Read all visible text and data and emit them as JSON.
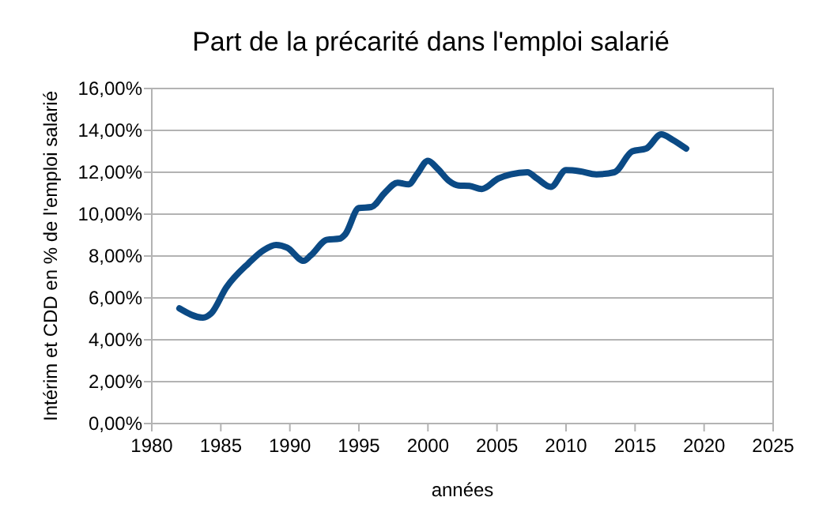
{
  "chart_data": {
    "type": "line",
    "title": "Part de la précarité dans l'emploi salarié",
    "xlabel": "années",
    "ylabel": "Intérim et CDD en % de l'emploi salarié",
    "x": [
      1982,
      1983.7,
      1984.3,
      1985.4,
      1987,
      1988.1,
      1989,
      1989.8,
      1991,
      1991.5,
      1992.7,
      1993.6,
      1994,
      1995,
      1995.9,
      1996.9,
      1997.8,
      1998.6,
      1999.2,
      2000,
      2000.7,
      2001.5,
      2002.2,
      2003,
      2003.9,
      2005.1,
      2006,
      2007.2,
      2007.9,
      2008.9,
      2010,
      2011,
      2012.2,
      2013.5,
      2014.8,
      2015.8,
      2016.9,
      2017.7,
      2018.7
    ],
    "series": [
      {
        "color": "#0b4a85",
        "values": [
          5.5,
          5.06,
          5.26,
          6.5,
          7.65,
          8.28,
          8.53,
          8.4,
          7.77,
          8.02,
          8.78,
          8.83,
          9.03,
          10.29,
          10.34,
          11.04,
          11.5,
          11.42,
          11.9,
          12.55,
          12.17,
          11.6,
          11.37,
          11.35,
          11.2,
          11.7,
          11.9,
          12.0,
          11.7,
          11.3,
          12.1,
          12.05,
          11.9,
          12.0,
          13.0,
          13.13,
          13.81,
          13.56,
          13.13
        ]
      }
    ],
    "xlim": [
      1980,
      2025
    ],
    "xticks": [
      1980,
      1985,
      1990,
      1995,
      2000,
      2005,
      2010,
      2015,
      2020,
      2025
    ],
    "ylim": [
      0,
      16
    ],
    "yticks": [
      {
        "value": 0,
        "label": "0,00%"
      },
      {
        "value": 2,
        "label": "2,00%"
      },
      {
        "value": 4,
        "label": "4,00%"
      },
      {
        "value": 6,
        "label": "6,00%"
      },
      {
        "value": 8,
        "label": "8,00%"
      },
      {
        "value": 10,
        "label": "10,00%"
      },
      {
        "value": 12,
        "label": "12,00%"
      },
      {
        "value": 14,
        "label": "14,00%"
      },
      {
        "value": 16,
        "label": "16,00%"
      }
    ],
    "grid": "y",
    "marker": "none",
    "line_style": "solid"
  }
}
